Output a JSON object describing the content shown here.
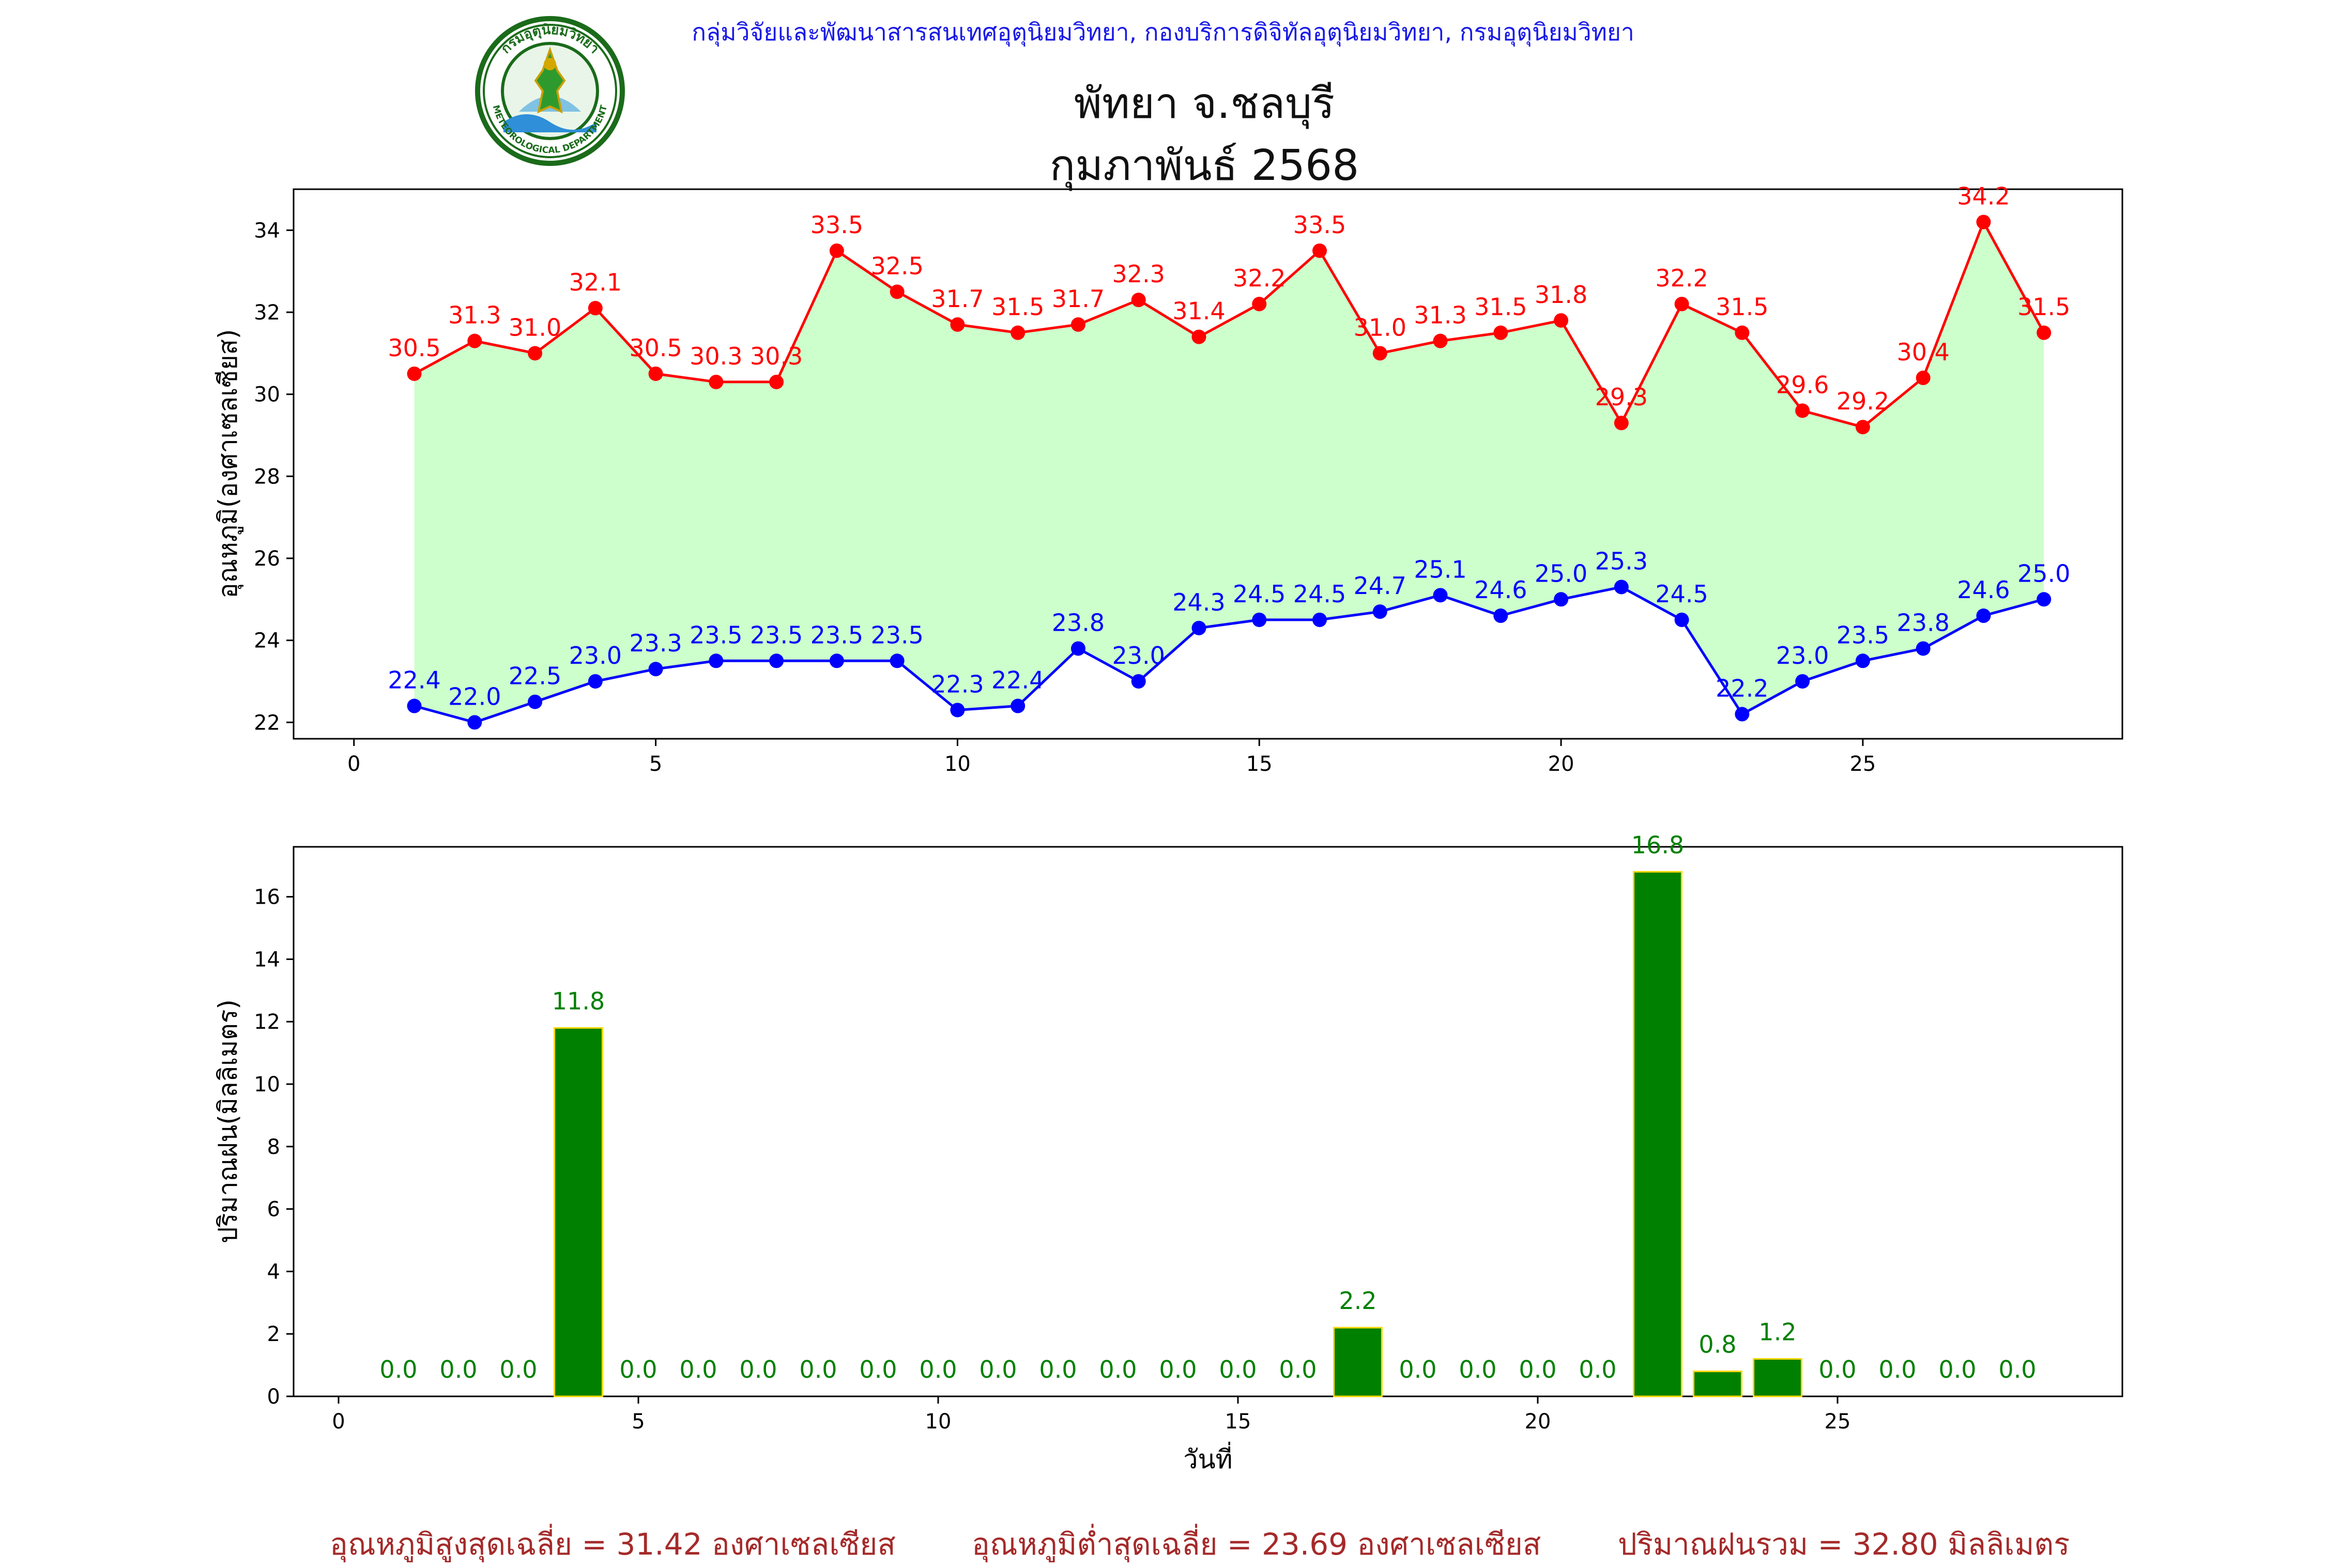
{
  "header": {
    "credit": "กลุ่มวิจัยและพัฒนาสารสนเทศอุตุนิยมวิทยา, กองบริการดิจิทัลอุตุนิยมวิทยา, กรมอุตุนิยมวิทยา",
    "title_line1": "พัทยา จ.ชลบุรี",
    "title_line2": "กุมภาพันธ์ 2568",
    "logo_top_text": "กรมอุตุนิยมวิทยา",
    "logo_bottom_text": "METEOROLOGICAL DEPARTMENT"
  },
  "summary": {
    "avg_max": "อุณหภูมิสูงสุดเฉลี่ย = 31.42 องศาเซลเซียส",
    "avg_min": "อุณหภูมิต่ำสุดเฉลี่ย = 23.69 องศาเซลเซียส",
    "total_rain": "ปริมาณฝนรวม = 32.80 มิลลิเมตร"
  },
  "colors": {
    "max": "#ff0000",
    "min": "#0000ff",
    "fill": "#ccffcc",
    "bar": "#008000",
    "bar_edge": "#ffd700",
    "summary": "#a52a2a"
  },
  "chart_data": [
    {
      "type": "line",
      "ylabel": "อุณหภูมิ(องศาเซลเซียส)",
      "xlabel": "",
      "x": [
        1,
        2,
        3,
        4,
        5,
        6,
        7,
        8,
        9,
        10,
        11,
        12,
        13,
        14,
        15,
        16,
        17,
        18,
        19,
        20,
        21,
        22,
        23,
        24,
        25,
        26,
        27,
        28
      ],
      "xlim": [
        -1,
        29.3
      ],
      "ylim": [
        21.6,
        35
      ],
      "xticks": [
        0,
        5,
        10,
        15,
        20,
        25
      ],
      "yticks": [
        22,
        24,
        26,
        28,
        30,
        32,
        34
      ],
      "fill_between": true,
      "series": [
        {
          "key": "max",
          "values": [
            30.5,
            31.3,
            31.0,
            32.1,
            30.5,
            30.3,
            30.3,
            33.5,
            32.5,
            31.7,
            31.5,
            31.7,
            32.3,
            31.4,
            32.2,
            33.5,
            31.0,
            31.3,
            31.5,
            31.8,
            29.3,
            32.2,
            31.5,
            29.6,
            29.2,
            30.4,
            34.2,
            31.5
          ]
        },
        {
          "key": "min",
          "values": [
            22.4,
            22.0,
            22.5,
            23.0,
            23.3,
            23.5,
            23.5,
            23.5,
            23.5,
            22.3,
            22.4,
            23.8,
            23.0,
            24.3,
            24.5,
            24.5,
            24.7,
            25.1,
            24.6,
            25.0,
            25.3,
            24.5,
            22.2,
            23.0,
            23.5,
            23.8,
            24.6,
            25.0
          ]
        }
      ]
    },
    {
      "type": "bar",
      "ylabel": "ปริมาณฝน(มิลลิเมตร)",
      "xlabel": "วันที่",
      "x": [
        1,
        2,
        3,
        4,
        5,
        6,
        7,
        8,
        9,
        10,
        11,
        12,
        13,
        14,
        15,
        16,
        17,
        18,
        19,
        20,
        21,
        22,
        23,
        24,
        25,
        26,
        27,
        28
      ],
      "values": [
        0.0,
        0.0,
        0.0,
        11.8,
        0.0,
        0.0,
        0.0,
        0.0,
        0.0,
        0.0,
        0.0,
        0.0,
        0.0,
        0.0,
        0.0,
        0.0,
        2.2,
        0.0,
        0.0,
        0.0,
        0.0,
        16.8,
        0.8,
        1.2,
        0.0,
        0.0,
        0.0,
        0.0
      ],
      "xlim": [
        -0.75,
        29.75
      ],
      "ylim": [
        0,
        17.6
      ],
      "xticks": [
        0,
        5,
        10,
        15,
        20,
        25
      ],
      "yticks": [
        0,
        2,
        4,
        6,
        8,
        10,
        12,
        14,
        16
      ]
    }
  ]
}
